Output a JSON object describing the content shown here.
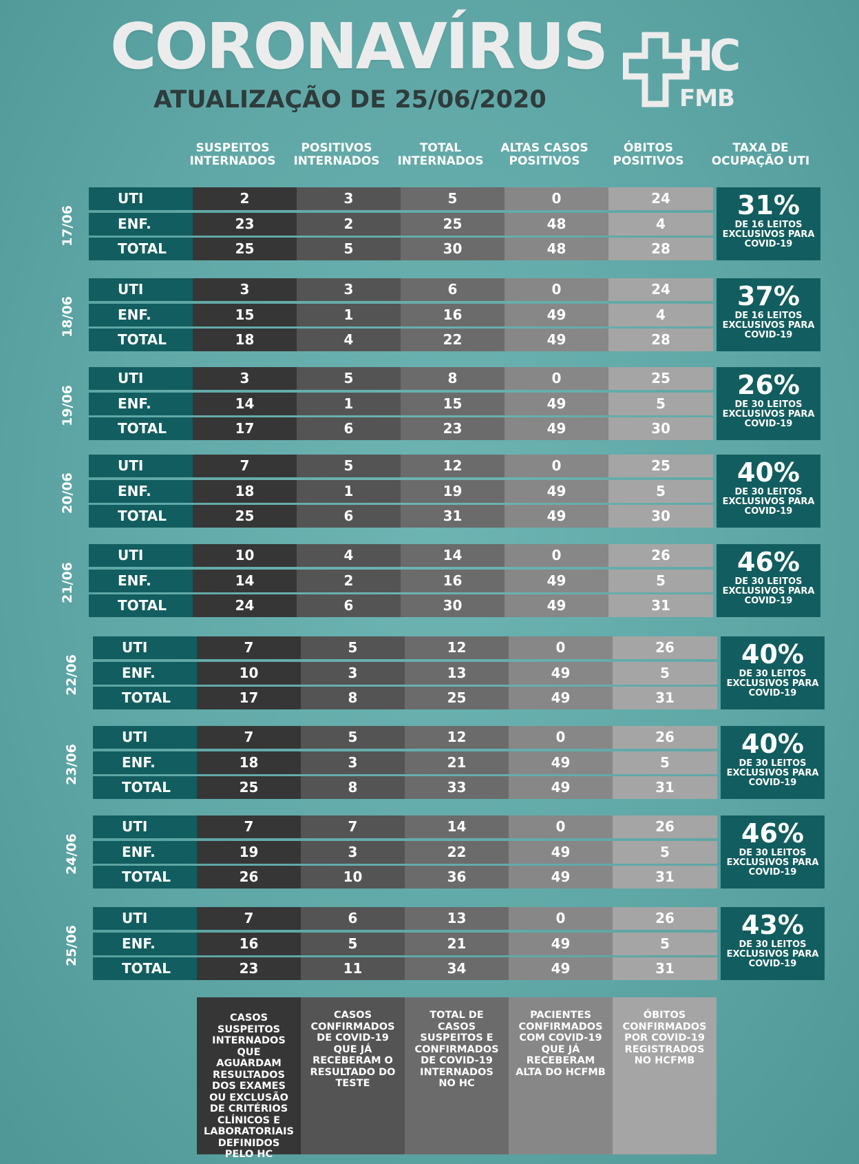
{
  "title": "CORONAVÍRUS",
  "subtitle": "ATUALIZAÇÃO DE 25/06/2020",
  "logo": {
    "text_top": "HC",
    "text_bottom": "FMB",
    "icon": "hospital-cross-icon"
  },
  "headers": [
    "SUSPEITOS INTERNADOS",
    "POSITIVOS INTERNADOS",
    "TOTAL INTERNADOS",
    "ALTAS CASOS POSITIVOS",
    "ÓBITOS POSITIVOS",
    "TAXA DE OCUPAÇÃO UTI"
  ],
  "groups": [
    {
      "date": "17/06",
      "rate": "31%",
      "rate_desc": "DE 16 LEITOS EXCLUSIVOS PARA COVID-19",
      "rows": [
        {
          "label": "UTI",
          "values": [
            "2",
            "3",
            "5",
            "0",
            "24"
          ]
        },
        {
          "label": "ENF.",
          "values": [
            "23",
            "2",
            "25",
            "48",
            "4"
          ]
        },
        {
          "label": "TOTAL",
          "values": [
            "25",
            "5",
            "30",
            "48",
            "28"
          ]
        }
      ]
    },
    {
      "date": "18/06",
      "rate": "37%",
      "rate_desc": "DE 16 LEITOS EXCLUSIVOS PARA COVID-19",
      "rows": [
        {
          "label": "UTI",
          "values": [
            "3",
            "3",
            "6",
            "0",
            "24"
          ]
        },
        {
          "label": "ENF.",
          "values": [
            "15",
            "1",
            "16",
            "49",
            "4"
          ]
        },
        {
          "label": "TOTAL",
          "values": [
            "18",
            "4",
            "22",
            "49",
            "28"
          ]
        }
      ]
    },
    {
      "date": "19/06",
      "rate": "26%",
      "rate_desc": "DE 30 LEITOS EXCLUSIVOS PARA COVID-19",
      "rows": [
        {
          "label": "UTI",
          "values": [
            "3",
            "5",
            "8",
            "0",
            "25"
          ]
        },
        {
          "label": "ENF.",
          "values": [
            "14",
            "1",
            "15",
            "49",
            "5"
          ]
        },
        {
          "label": "TOTAL",
          "values": [
            "17",
            "6",
            "23",
            "49",
            "30"
          ]
        }
      ]
    },
    {
      "date": "20/06",
      "rate": "40%",
      "rate_desc": "DE 30 LEITOS EXCLUSIVOS PARA COVID-19",
      "rows": [
        {
          "label": "UTI",
          "values": [
            "7",
            "5",
            "12",
            "0",
            "25"
          ]
        },
        {
          "label": "ENF.",
          "values": [
            "18",
            "1",
            "19",
            "49",
            "5"
          ]
        },
        {
          "label": "TOTAL",
          "values": [
            "25",
            "6",
            "31",
            "49",
            "30"
          ]
        }
      ]
    },
    {
      "date": "21/06",
      "rate": "46%",
      "rate_desc": "DE 30 LEITOS EXCLUSIVOS PARA COVID-19",
      "rows": [
        {
          "label": "UTI",
          "values": [
            "10",
            "4",
            "14",
            "0",
            "26"
          ]
        },
        {
          "label": "ENF.",
          "values": [
            "14",
            "2",
            "16",
            "49",
            "5"
          ]
        },
        {
          "label": "TOTAL",
          "values": [
            "24",
            "6",
            "30",
            "49",
            "31"
          ]
        }
      ]
    },
    {
      "date": "22/06",
      "rate": "40%",
      "rate_desc": "DE 30 LEITOS EXCLUSIVOS PARA COVID-19",
      "rows": [
        {
          "label": "UTI",
          "values": [
            "7",
            "5",
            "12",
            "0",
            "26"
          ]
        },
        {
          "label": "ENF.",
          "values": [
            "10",
            "3",
            "13",
            "49",
            "5"
          ]
        },
        {
          "label": "TOTAL",
          "values": [
            "17",
            "8",
            "25",
            "49",
            "31"
          ]
        }
      ]
    },
    {
      "date": "23/06",
      "rate": "40%",
      "rate_desc": "DE 30 LEITOS EXCLUSIVOS PARA COVID-19",
      "rows": [
        {
          "label": "UTI",
          "values": [
            "7",
            "5",
            "12",
            "0",
            "26"
          ]
        },
        {
          "label": "ENF.",
          "values": [
            "18",
            "3",
            "21",
            "49",
            "5"
          ]
        },
        {
          "label": "TOTAL",
          "values": [
            "25",
            "8",
            "33",
            "49",
            "31"
          ]
        }
      ]
    },
    {
      "date": "24/06",
      "rate": "46%",
      "rate_desc": "DE 30 LEITOS EXCLUSIVOS PARA COVID-19",
      "rows": [
        {
          "label": "UTI",
          "values": [
            "7",
            "7",
            "14",
            "0",
            "26"
          ]
        },
        {
          "label": "ENF.",
          "values": [
            "19",
            "3",
            "22",
            "49",
            "5"
          ]
        },
        {
          "label": "TOTAL",
          "values": [
            "26",
            "10",
            "36",
            "49",
            "31"
          ]
        }
      ]
    },
    {
      "date": "25/06",
      "rate": "43%",
      "rate_desc": "DE 30 LEITOS EXCLUSIVOS PARA COVID-19",
      "rows": [
        {
          "label": "UTI",
          "values": [
            "7",
            "6",
            "13",
            "0",
            "26"
          ]
        },
        {
          "label": "ENF.",
          "values": [
            "16",
            "5",
            "21",
            "49",
            "5"
          ]
        },
        {
          "label": "TOTAL",
          "values": [
            "23",
            "11",
            "34",
            "49",
            "31"
          ]
        }
      ]
    }
  ],
  "legend": [
    "CASOS SUSPEITOS INTERNADOS QUE AGUARDAM RESULTADOS DOS EXAMES OU EXCLUSÃO DE CRITÉRIOS CLÍNICOS E LABORATORIAIS DEFINIDOS PELO HC",
    "CASOS CONFIRMADOS DE COVID-19 QUE JÁ RECEBERAM O RESULTADO DO TESTE",
    "TOTAL DE CASOS SUSPEITOS E CONFIRMADOS DE COVID-19 INTERNADOS NO HC",
    "PACIENTES CONFIRMADOS COM COVID-19 QUE JÁ RECEBERAM ALTA DO HCFMB",
    "ÓBITOS CONFIRMADOS POR COVID-19 REGISTRADOS NO HCFMB"
  ],
  "colors": {
    "background": "#5fa7a6",
    "teal_dark": "#125d5f",
    "title": "#ececec",
    "subtitle": "#2f3b3c"
  }
}
